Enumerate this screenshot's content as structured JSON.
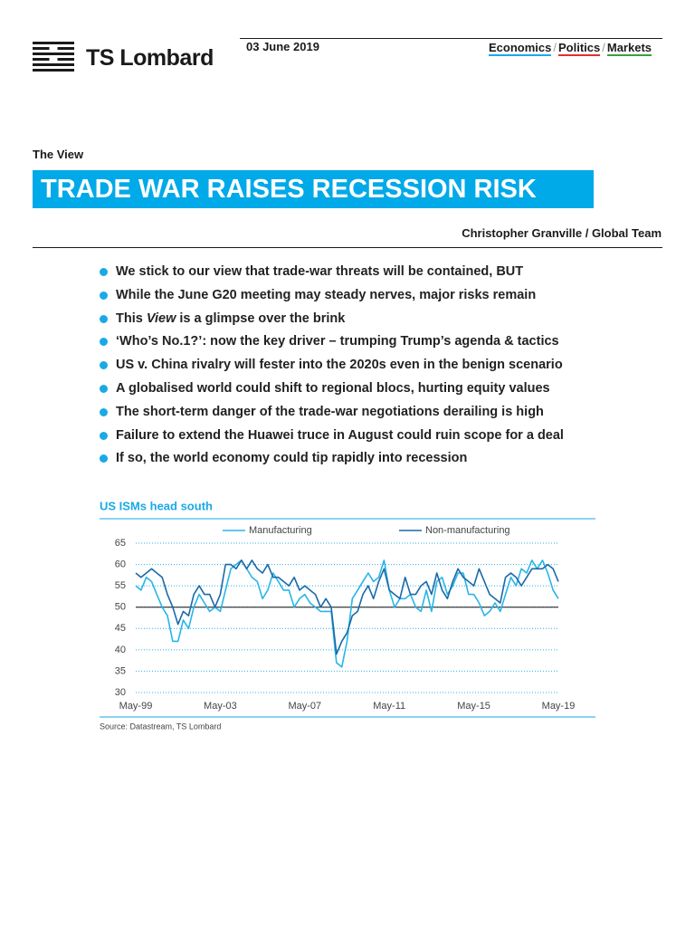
{
  "header": {
    "logo": "TS Lombard",
    "date": "03 June 2019",
    "nav": [
      "Economics",
      "Politics",
      "Markets"
    ],
    "nav_separator": "/"
  },
  "section": "The View",
  "title": "TRADE WAR RAISES RECESSION RISK",
  "author": "Christopher Granville / Global Team",
  "bullets": [
    "We stick to our view that trade-war threats will be contained, BUT",
    "While the June G20 meeting may steady nerves, major risks remain",
    {
      "before": "This",
      "em": "View",
      "after": "is a glimpse over the brink"
    },
    "‘Who’s No.1?’: now the key driver – trumping Trump’s agenda & tactics",
    "US v. China rivalry will fester into the 2020s even in the benign scenario",
    "A globalised world could shift to regional blocs, hurting equity values",
    "The short-term danger of the trade-war negotiations derailing is high",
    "Failure to extend the Huawei truce in August could ruin scope for a deal",
    "If so, the world economy could tip rapidly into recession"
  ],
  "chart_data": {
    "type": "line",
    "title": "US ISMs head south",
    "legend": "top",
    "grid": true,
    "reference_line": 50,
    "categories": [
      "May-99",
      null,
      null,
      null,
      null,
      null,
      null,
      null,
      null,
      null,
      null,
      null,
      null,
      null,
      null,
      null,
      "May-03",
      null,
      null,
      null,
      null,
      null,
      null,
      null,
      null,
      null,
      null,
      null,
      null,
      null,
      null,
      null,
      "May-07",
      null,
      null,
      null,
      null,
      null,
      null,
      null,
      null,
      null,
      null,
      null,
      null,
      null,
      null,
      null,
      "May-11",
      null,
      null,
      null,
      null,
      null,
      null,
      null,
      null,
      null,
      null,
      null,
      null,
      null,
      null,
      null,
      "May-15",
      null,
      null,
      null,
      null,
      null,
      null,
      null,
      null,
      null,
      null,
      null,
      null,
      null,
      null,
      null,
      "May-19"
    ],
    "ylim": [
      30,
      65
    ],
    "yticks": [
      30,
      35,
      40,
      45,
      50,
      55,
      60,
      65
    ],
    "series": [
      {
        "name": "Manufacturing",
        "color": "#29b5e8",
        "values": [
          55,
          54,
          57,
          56,
          53,
          50,
          48,
          42,
          42,
          47,
          45,
          50,
          53,
          51,
          49,
          50,
          49,
          54,
          59,
          60,
          61,
          59,
          57,
          56,
          52,
          54,
          58,
          56,
          54,
          54,
          50,
          52,
          53,
          51,
          50,
          49,
          49,
          49,
          37,
          36,
          42,
          52,
          54,
          56,
          58,
          56,
          57,
          61,
          54,
          50,
          52,
          52,
          53,
          50,
          49,
          54,
          49,
          56,
          57,
          53,
          55,
          58,
          58,
          53,
          53,
          51,
          48,
          49,
          51,
          49,
          53,
          57,
          55,
          59,
          58,
          61,
          59,
          61,
          58,
          54,
          52
        ]
      },
      {
        "name": "Non-manufacturing",
        "color": "#1a6aa8",
        "values": [
          58,
          57,
          58,
          59,
          58,
          57,
          53,
          50,
          46,
          49,
          48,
          53,
          55,
          53,
          53,
          50,
          53,
          60,
          60,
          59,
          61,
          59,
          61,
          59,
          58,
          60,
          57,
          57,
          56,
          55,
          57,
          54,
          55,
          54,
          53,
          50,
          52,
          50,
          39,
          42,
          44,
          48,
          49,
          53,
          55,
          52,
          56,
          59,
          54,
          53,
          52,
          57,
          53,
          53,
          55,
          56,
          53,
          58,
          54,
          52,
          56,
          59,
          57,
          56,
          55,
          59,
          56,
          53,
          52,
          51,
          57,
          58,
          57,
          55,
          57,
          59,
          59,
          59,
          60,
          59,
          56
        ]
      }
    ],
    "source": "Source: Datastream, TS Lombard"
  }
}
